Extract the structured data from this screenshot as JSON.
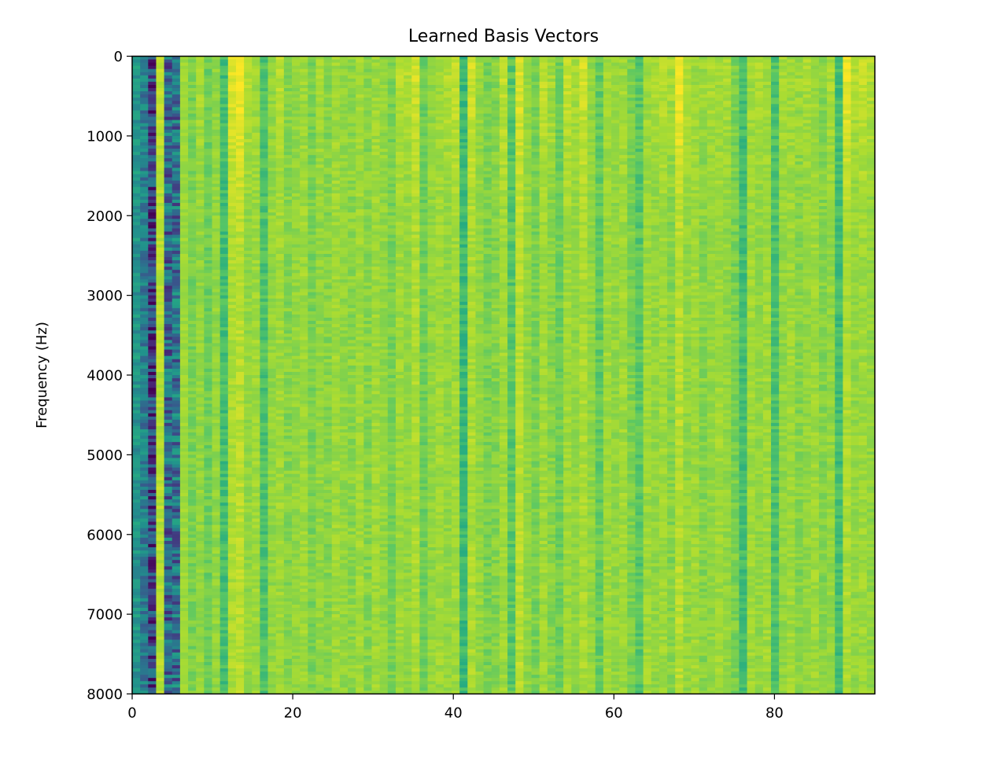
{
  "chart_data": {
    "type": "heatmap",
    "title": "Learned Basis Vectors",
    "xlabel": "",
    "ylabel": "Frequency (Hz)",
    "xlim": [
      0,
      92.5
    ],
    "ylim": [
      8000,
      0
    ],
    "y_inverted": true,
    "x_ticks": [
      0,
      20,
      40,
      60,
      80
    ],
    "x_tick_labels": [
      "0",
      "20",
      "40",
      "60",
      "80"
    ],
    "y_ticks": [
      0,
      1000,
      2000,
      3000,
      4000,
      5000,
      6000,
      7000,
      8000
    ],
    "y_tick_labels": [
      "0",
      "1000",
      "2000",
      "3000",
      "4000",
      "5000",
      "6000",
      "7000",
      "8000"
    ],
    "n_columns": 93,
    "colormap": "viridis",
    "grid": false,
    "column_base_levels": [
      0.52,
      0.42,
      0.2,
      0.9,
      0.35,
      0.38,
      0.86,
      0.8,
      0.84,
      0.78,
      0.84,
      0.7,
      0.88,
      0.9,
      0.84,
      0.86,
      0.72,
      0.84,
      0.86,
      0.82,
      0.84,
      0.86,
      0.8,
      0.84,
      0.82,
      0.86,
      0.84,
      0.83,
      0.86,
      0.82,
      0.86,
      0.84,
      0.8,
      0.86,
      0.84,
      0.88,
      0.78,
      0.84,
      0.86,
      0.84,
      0.86,
      0.68,
      0.88,
      0.84,
      0.8,
      0.82,
      0.86,
      0.74,
      0.9,
      0.84,
      0.8,
      0.86,
      0.82,
      0.78,
      0.86,
      0.84,
      0.88,
      0.84,
      0.76,
      0.86,
      0.84,
      0.86,
      0.8,
      0.74,
      0.86,
      0.84,
      0.86,
      0.82,
      0.9,
      0.84,
      0.86,
      0.82,
      0.84,
      0.86,
      0.84,
      0.8,
      0.7,
      0.86,
      0.84,
      0.86,
      0.72,
      0.84,
      0.86,
      0.82,
      0.84,
      0.86,
      0.82,
      0.84,
      0.7,
      0.88,
      0.84,
      0.86,
      0.84
    ],
    "column_low_freq_boost": [
      0.0,
      0.0,
      0.0,
      0.0,
      0.0,
      0.0,
      0.0,
      0.0,
      0.04,
      0.0,
      0.0,
      0.0,
      0.08,
      0.1,
      0.06,
      0.0,
      0.0,
      0.0,
      0.04,
      0.0,
      0.0,
      0.0,
      0.0,
      0.04,
      0.0,
      0.0,
      0.0,
      0.0,
      0.0,
      0.0,
      0.0,
      0.0,
      0.0,
      0.04,
      0.06,
      0.06,
      0.0,
      0.0,
      0.0,
      0.06,
      0.06,
      0.0,
      0.06,
      0.0,
      0.0,
      0.0,
      0.06,
      0.0,
      0.06,
      0.0,
      0.0,
      0.06,
      0.06,
      0.0,
      0.06,
      0.04,
      0.06,
      0.0,
      0.0,
      0.0,
      0.0,
      0.0,
      0.0,
      0.0,
      0.0,
      0.04,
      0.04,
      0.06,
      0.1,
      0.06,
      0.0,
      0.04,
      0.04,
      0.0,
      0.04,
      0.0,
      0.0,
      0.0,
      0.04,
      0.0,
      0.0,
      0.04,
      0.0,
      0.04,
      0.04,
      0.0,
      0.0,
      0.04,
      0.0,
      0.1,
      0.06,
      0.06,
      0.06
    ],
    "column_noise": [
      0.1,
      0.14,
      0.24,
      0.04,
      0.22,
      0.22,
      0.03,
      0.05,
      0.04,
      0.05,
      0.04,
      0.06,
      0.04,
      0.04,
      0.04,
      0.04,
      0.06,
      0.04,
      0.04,
      0.05,
      0.04,
      0.04,
      0.05,
      0.04,
      0.05,
      0.04,
      0.04,
      0.05,
      0.04,
      0.05,
      0.04,
      0.04,
      0.05,
      0.04,
      0.04,
      0.04,
      0.05,
      0.04,
      0.04,
      0.04,
      0.04,
      0.06,
      0.04,
      0.04,
      0.05,
      0.05,
      0.04,
      0.06,
      0.04,
      0.04,
      0.05,
      0.04,
      0.05,
      0.05,
      0.04,
      0.04,
      0.04,
      0.04,
      0.06,
      0.04,
      0.04,
      0.04,
      0.05,
      0.06,
      0.04,
      0.04,
      0.04,
      0.05,
      0.04,
      0.04,
      0.04,
      0.05,
      0.04,
      0.04,
      0.04,
      0.05,
      0.06,
      0.04,
      0.04,
      0.04,
      0.06,
      0.04,
      0.04,
      0.05,
      0.04,
      0.04,
      0.05,
      0.04,
      0.06,
      0.04,
      0.04,
      0.04,
      0.04
    ],
    "value_range": [
      0,
      1
    ]
  }
}
